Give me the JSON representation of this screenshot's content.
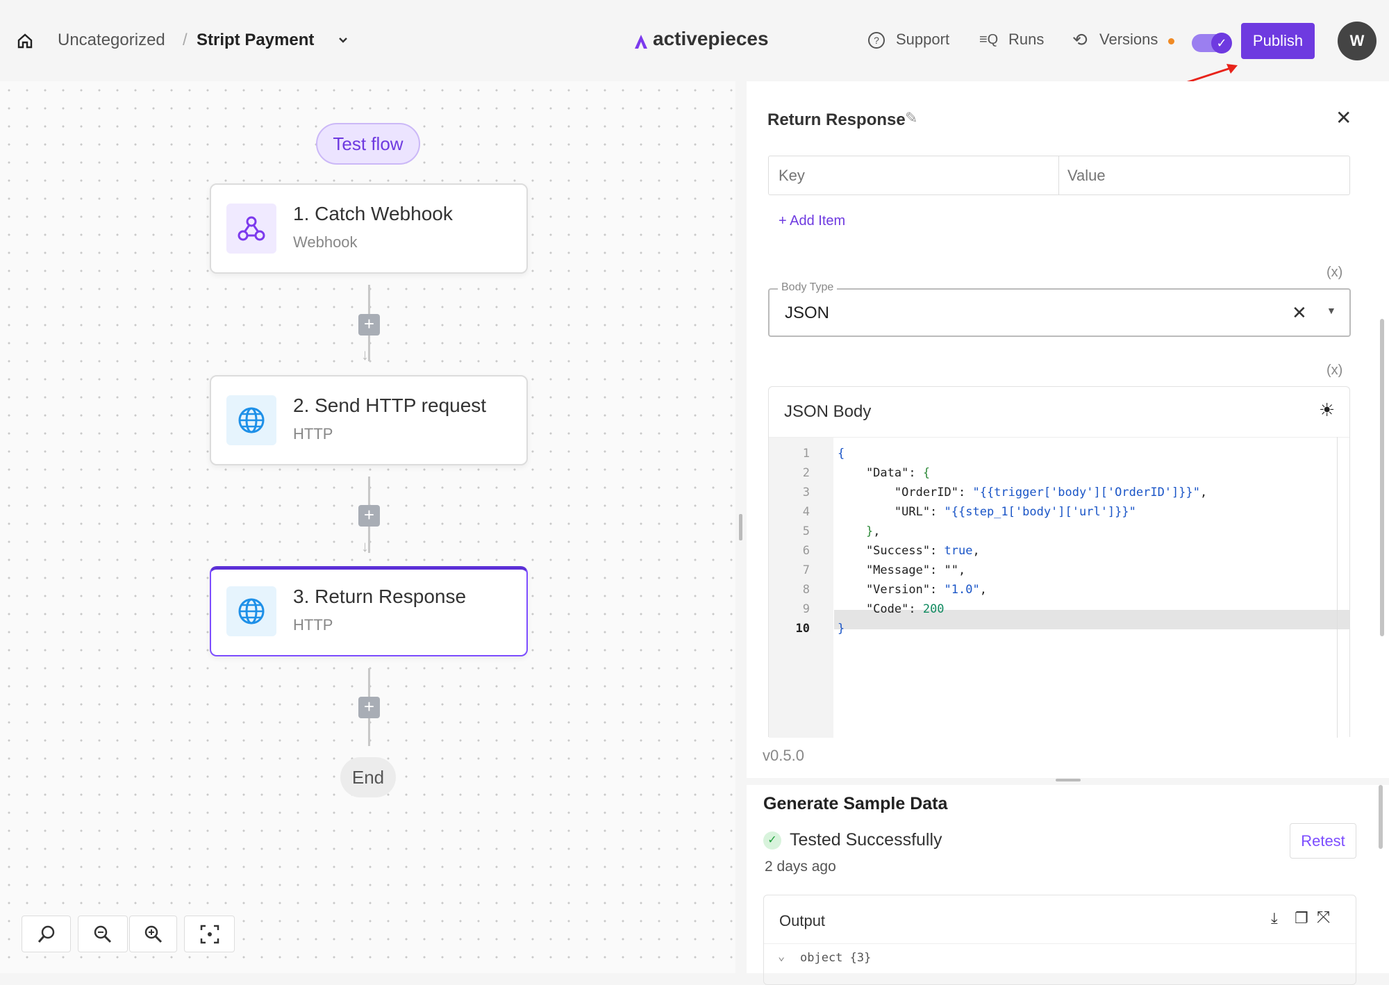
{
  "header": {
    "breadcrumb_folder": "Uncategorized",
    "breadcrumb_separator": "/",
    "flow_name": "Stript Payment",
    "logo": "activepieces",
    "support": "Support",
    "runs": "Runs",
    "versions": "Versions",
    "publish": "Publish",
    "avatar": "W",
    "toggle_on": true,
    "accent": "#6e3ae0"
  },
  "canvas": {
    "test_flow": "Test flow",
    "nodes": [
      {
        "title": "1. Catch Webhook",
        "subtitle": "Webhook",
        "icon": "webhook-icon"
      },
      {
        "title": "2. Send HTTP request",
        "subtitle": "HTTP",
        "icon": "globe-icon"
      },
      {
        "title": "3. Return Response",
        "subtitle": "HTTP",
        "icon": "globe-icon",
        "selected": true
      }
    ],
    "end": "End",
    "zoom_controls": [
      "zoom-fit-icon",
      "zoom-out-icon",
      "zoom-in-icon",
      "focus-icon"
    ]
  },
  "panel": {
    "title": "Return Response",
    "key_placeholder": "Key",
    "value_placeholder": "Value",
    "add_item": "+ Add Item",
    "var_marker": "(x)",
    "body_type_label": "Body Type",
    "body_type_value": "JSON",
    "json_body_label": "JSON Body",
    "code_lines": [
      {
        "n": "1",
        "tokens": [
          {
            "t": "{",
            "c": "b"
          }
        ]
      },
      {
        "n": "2",
        "tokens": [
          {
            "t": "    \"Data\": ",
            "c": "k"
          },
          {
            "t": "{",
            "c": "p"
          }
        ]
      },
      {
        "n": "3",
        "tokens": [
          {
            "t": "        \"OrderID\": ",
            "c": "k"
          },
          {
            "t": "\"{{trigger['body']['OrderID']}}\"",
            "c": "s"
          },
          {
            "t": ",",
            "c": "k"
          }
        ]
      },
      {
        "n": "4",
        "tokens": [
          {
            "t": "        \"URL\": ",
            "c": "k"
          },
          {
            "t": "\"{{step_1['body']['url']}}\"",
            "c": "s"
          }
        ]
      },
      {
        "n": "5",
        "tokens": [
          {
            "t": "    ",
            "c": "k"
          },
          {
            "t": "}",
            "c": "p"
          },
          {
            "t": ",",
            "c": "k"
          }
        ]
      },
      {
        "n": "6",
        "tokens": [
          {
            "t": "    \"Success\": ",
            "c": "k"
          },
          {
            "t": "true",
            "c": "s"
          },
          {
            "t": ",",
            "c": "k"
          }
        ]
      },
      {
        "n": "7",
        "tokens": [
          {
            "t": "    \"Message\": \"\",",
            "c": "k"
          }
        ]
      },
      {
        "n": "8",
        "tokens": [
          {
            "t": "    \"Version\": ",
            "c": "k"
          },
          {
            "t": "\"1.0\"",
            "c": "s"
          },
          {
            "t": ",",
            "c": "k"
          }
        ]
      },
      {
        "n": "9",
        "tokens": [
          {
            "t": "    \"Code\": ",
            "c": "k"
          },
          {
            "t": "200",
            "c": "n"
          }
        ]
      },
      {
        "n": "10",
        "tokens": [
          {
            "t": "}",
            "c": "b"
          }
        ]
      }
    ],
    "version": "v0.5.0"
  },
  "sample": {
    "title": "Generate Sample Data",
    "status": "Tested Successfully",
    "time": "2 days ago",
    "retest": "Retest",
    "output_label": "Output",
    "object_summary": "object {3}"
  }
}
